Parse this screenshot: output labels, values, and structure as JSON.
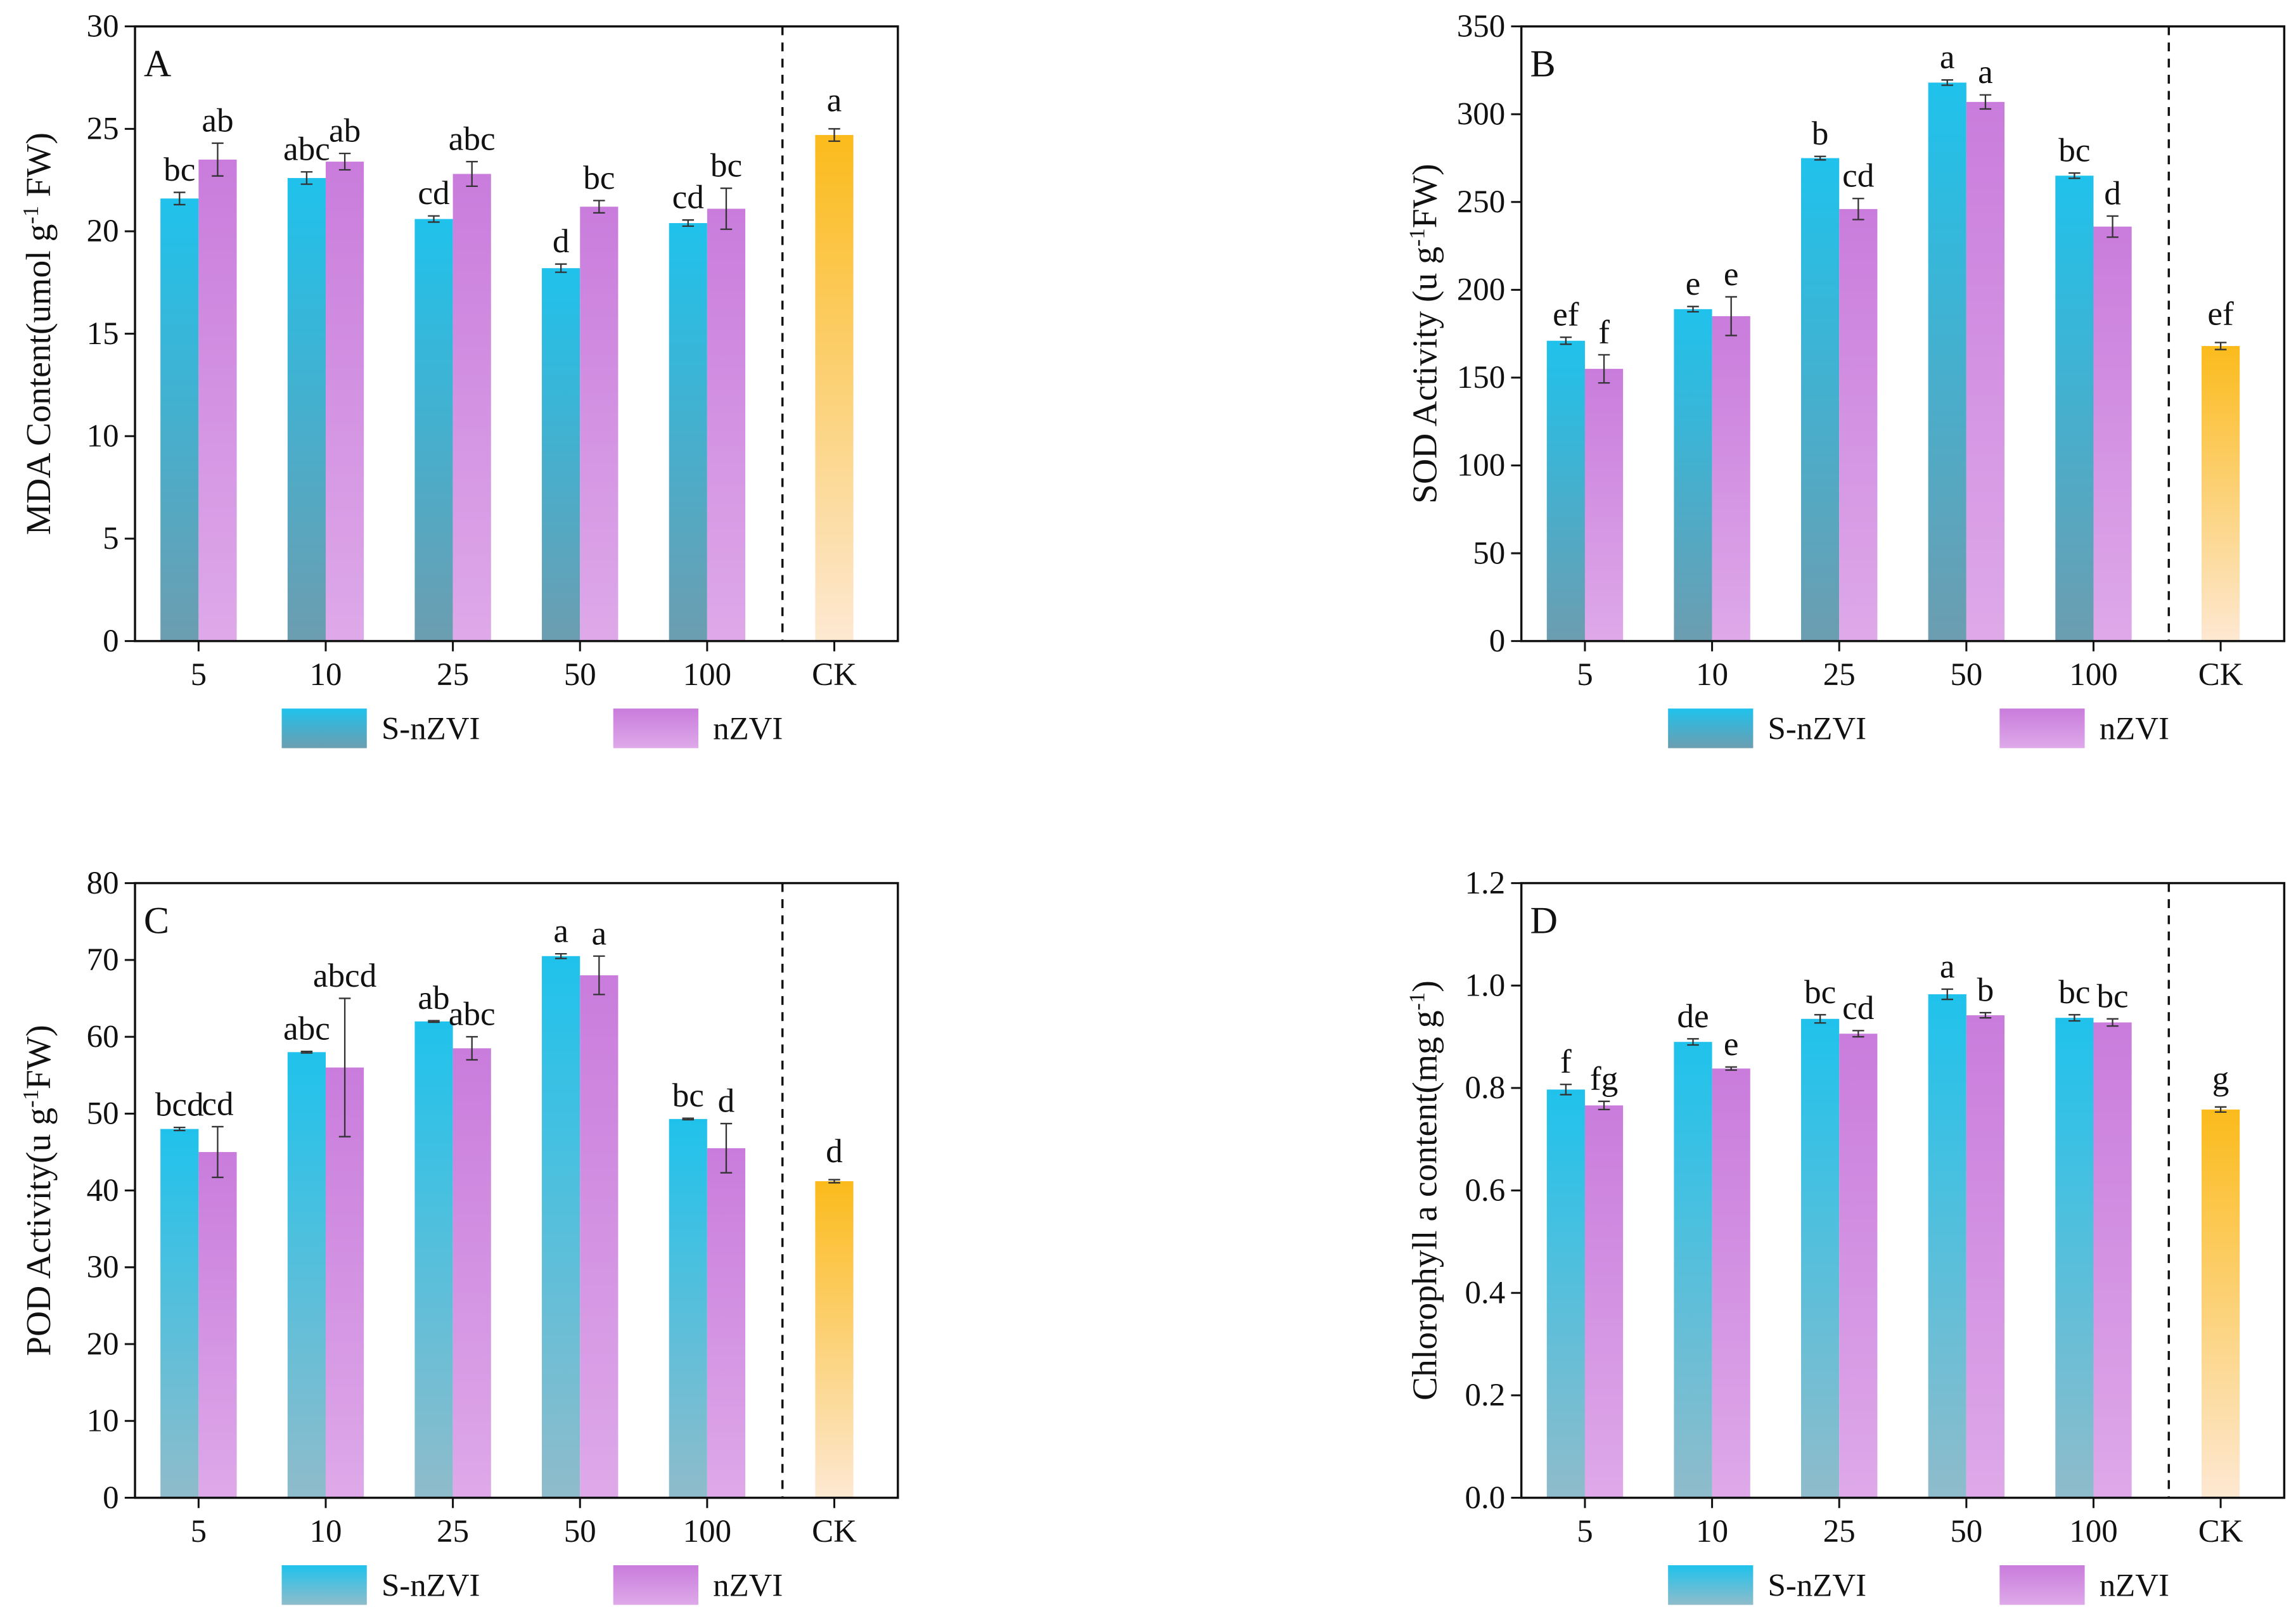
{
  "chart_data": [
    {
      "type": "bar",
      "panel": "A",
      "ylabel": [
        "MDA  Content(umol g",
        "-1",
        " FW)"
      ],
      "categories": [
        "5",
        "10",
        "25",
        "50",
        "100"
      ],
      "ylim": [
        0,
        30
      ],
      "yticks": [
        0,
        5,
        10,
        15,
        20,
        25,
        30
      ],
      "series": [
        {
          "name": "S-nZVI",
          "color": [
            "#1fc2ec",
            "#6c9db0"
          ],
          "values": [
            21.6,
            22.6,
            20.6,
            18.2,
            20.4
          ],
          "errors": [
            0.3,
            0.3,
            0.15,
            0.2,
            0.15
          ],
          "letters": [
            "bc",
            "abc",
            "cd",
            "d",
            "cd"
          ]
        },
        {
          "name": "nZVI",
          "color": [
            "#c97cdc",
            "#dea9e9"
          ],
          "values": [
            23.5,
            23.4,
            22.8,
            21.2,
            21.1
          ],
          "errors": [
            0.8,
            0.4,
            0.6,
            0.3,
            1.0
          ],
          "letters": [
            "ab",
            "ab",
            "abc",
            "bc",
            "bc"
          ]
        }
      ],
      "control": {
        "label": "CK",
        "color": [
          "#fbbb1c",
          "#fde8d2"
        ],
        "value": 24.7,
        "error": 0.3,
        "letter": "a"
      }
    },
    {
      "type": "bar",
      "panel": "B",
      "ylabel": [
        "SOD  Activity (u g",
        "-1",
        "FW)"
      ],
      "categories": [
        "5",
        "10",
        "25",
        "50",
        "100"
      ],
      "ylim": [
        0,
        350
      ],
      "yticks": [
        0,
        50,
        100,
        150,
        200,
        250,
        300,
        350
      ],
      "series": [
        {
          "name": "S-nZVI",
          "color": [
            "#1fc2ec",
            "#6c9db0"
          ],
          "values": [
            171,
            189,
            275,
            318,
            265
          ],
          "errors": [
            2,
            1.5,
            1,
            1.5,
            1.5
          ],
          "letters": [
            "ef",
            "e",
            "b",
            "a",
            "bc"
          ]
        },
        {
          "name": "nZVI",
          "color": [
            "#c97cdc",
            "#dea9e9"
          ],
          "values": [
            155,
            185,
            246,
            307,
            236
          ],
          "errors": [
            8,
            11,
            6,
            4,
            6
          ],
          "letters": [
            "f",
            "e",
            "cd",
            "a",
            "d"
          ]
        }
      ],
      "control": {
        "label": "CK",
        "color": [
          "#fbbb1c",
          "#fde8d2"
        ],
        "value": 168,
        "error": 2,
        "letter": "ef"
      }
    },
    {
      "type": "bar",
      "panel": "C",
      "ylabel": [
        "POD  Activity(u g",
        "-1",
        "FW)"
      ],
      "categories": [
        "5",
        "10",
        "25",
        "50",
        "100"
      ],
      "ylim": [
        0,
        80
      ],
      "yticks": [
        0,
        10,
        20,
        30,
        40,
        50,
        60,
        70,
        80
      ],
      "series": [
        {
          "name": "S-nZVI",
          "color": [
            "#1fc2ec",
            "#8fbccb"
          ],
          "values": [
            48,
            58,
            62,
            70.5,
            49.3
          ],
          "errors": [
            0.2,
            0.1,
            0.1,
            0.3,
            0.1
          ],
          "letters": [
            "bcd",
            "abc",
            "ab",
            "a",
            "bc"
          ]
        },
        {
          "name": "nZVI",
          "color": [
            "#c97cdc",
            "#dea9e9"
          ],
          "values": [
            45,
            56,
            58.5,
            68,
            45.5
          ],
          "errors": [
            3.3,
            9,
            1.5,
            2.5,
            3.2
          ],
          "letters": [
            "cd",
            "abcd",
            "abc",
            "a",
            "d"
          ]
        }
      ],
      "control": {
        "label": "CK",
        "color": [
          "#fbbb1c",
          "#fde8d2"
        ],
        "value": 41.2,
        "error": 0.2,
        "letter": "d"
      }
    },
    {
      "type": "bar",
      "panel": "D",
      "ylabel": [
        "Chlorophyll a content(mg g",
        "-1",
        ")"
      ],
      "categories": [
        "5",
        "10",
        "25",
        "50",
        "100"
      ],
      "ylim": [
        0,
        1.2
      ],
      "yticks": [
        {
          "value": 0,
          "label": "0.0"
        },
        0.2,
        0.4,
        0.6,
        0.8,
        {
          "value": 1,
          "label": "1.0"
        },
        1.2
      ],
      "series": [
        {
          "name": "S-nZVI",
          "color": [
            "#1fc2ec",
            "#8fbccb"
          ],
          "values": [
            0.797,
            0.89,
            0.935,
            0.983,
            0.937
          ],
          "errors": [
            0.01,
            0.006,
            0.008,
            0.01,
            0.006
          ],
          "letters": [
            "f",
            "de",
            "bc",
            "a",
            "bc"
          ]
        },
        {
          "name": "nZVI",
          "color": [
            "#c97cdc",
            "#dea9e9"
          ],
          "values": [
            0.766,
            0.838,
            0.906,
            0.942,
            0.928
          ],
          "errors": [
            0.008,
            0.003,
            0.006,
            0.005,
            0.007
          ],
          "letters": [
            "fg",
            "e",
            "cd",
            "b",
            "bc"
          ]
        }
      ],
      "control": {
        "label": "CK",
        "color": [
          "#fbbb1c",
          "#fde8d2"
        ],
        "value": 0.758,
        "error": 0.005,
        "letter": "g"
      }
    }
  ]
}
